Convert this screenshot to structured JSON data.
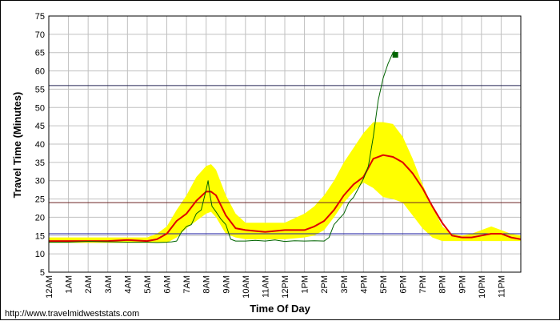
{
  "footer": {
    "url_text": "http://www.travelmidweststats.com"
  },
  "chart_data": {
    "type": "line",
    "xlabel": "Time Of Day",
    "ylabel": "Travel Time (Minutes)",
    "ylim": [
      5,
      75
    ],
    "yticks": [
      5,
      10,
      15,
      20,
      25,
      30,
      35,
      40,
      45,
      50,
      55,
      60,
      65,
      70,
      75
    ],
    "xlim": [
      0,
      24
    ],
    "xtick_labels": [
      "12AM",
      "1AM",
      "2AM",
      "3AM",
      "4AM",
      "5AM",
      "6AM",
      "7AM",
      "8AM",
      "9AM",
      "10AM",
      "11AM",
      "12PM",
      "1PM",
      "2PM",
      "3PM",
      "4PM",
      "5PM",
      "6PM",
      "7PM",
      "8PM",
      "9PM",
      "10PM",
      "11PM"
    ],
    "grid": true,
    "legend": "none",
    "reference_lines": [
      {
        "y": 15.5,
        "color": "#1a1aa0"
      },
      {
        "y": 24,
        "color": "#6a2020"
      },
      {
        "y": 56,
        "color": "#202050"
      }
    ],
    "band": {
      "color": "#ffff00",
      "x": [
        0,
        1,
        2,
        3,
        4,
        5,
        5.5,
        6,
        6.5,
        7,
        7.5,
        8,
        8.25,
        8.5,
        9,
        9.5,
        10,
        11,
        12,
        13,
        13.5,
        14,
        14.5,
        15,
        15.5,
        16,
        16.5,
        17,
        17.5,
        18,
        18.5,
        19,
        19.5,
        20,
        20.5,
        21,
        21.5,
        22,
        22.5,
        23,
        23.5,
        24
      ],
      "upper": [
        14.5,
        14.5,
        14.5,
        14.5,
        14.5,
        14.5,
        15.5,
        17.5,
        22,
        26,
        31,
        34,
        34.5,
        33,
        26,
        21,
        18.5,
        18.5,
        18.5,
        21,
        23,
        26,
        30,
        35,
        39,
        43,
        46,
        46,
        45.5,
        42,
        36,
        29,
        23,
        17.5,
        15.5,
        15,
        15.5,
        16.5,
        17.5,
        16.5,
        15.5,
        15
      ],
      "lower": [
        13,
        13,
        13,
        13,
        13,
        13,
        13,
        13,
        14.5,
        17,
        19,
        21,
        21.5,
        20,
        15.5,
        14.5,
        14,
        14,
        14,
        14.5,
        15,
        16.5,
        20,
        24,
        27,
        29.5,
        28,
        25.5,
        25,
        24,
        20.5,
        17,
        14.5,
        13.5,
        13.5,
        13.5,
        13.5,
        13.5,
        13.5,
        13.5,
        13.5,
        13.5
      ]
    },
    "series": [
      {
        "color": "#e00000",
        "x": [
          0,
          1,
          2,
          3,
          4,
          5,
          5.5,
          6,
          6.5,
          7,
          7.5,
          8,
          8.25,
          8.5,
          9,
          9.5,
          10,
          11,
          12,
          13,
          13.5,
          14,
          14.5,
          15,
          15.5,
          16,
          16.5,
          17,
          17.5,
          18,
          18.5,
          19,
          19.5,
          20,
          20.5,
          21,
          21.5,
          22,
          22.5,
          23,
          23.5,
          24
        ],
        "y": [
          13.5,
          13.5,
          13.5,
          13.5,
          13.8,
          13.5,
          14,
          15.5,
          19,
          21,
          24.5,
          27,
          27,
          26,
          20.5,
          17,
          16.5,
          16,
          16.5,
          16.5,
          17.5,
          19,
          22,
          26,
          29,
          31,
          36,
          37,
          36.5,
          35,
          32,
          28,
          23,
          18.5,
          15,
          14.5,
          14.5,
          15,
          15.5,
          15.5,
          14.5,
          14
        ]
      },
      {
        "color": "#006400",
        "x": [
          0,
          1,
          2,
          3,
          4,
          5,
          5.5,
          6,
          6.25,
          6.5,
          6.75,
          7,
          7.25,
          7.5,
          7.75,
          8,
          8.1,
          8.2,
          8.3,
          8.5,
          8.75,
          9,
          9.25,
          9.5,
          10,
          10.5,
          11,
          11.5,
          12,
          12.5,
          13,
          13.5,
          14,
          14.25,
          14.5,
          14.75,
          15,
          15.25,
          15.5,
          15.75,
          16,
          16.25,
          16.5,
          16.75,
          17,
          17.25,
          17.5,
          17.6
        ],
        "y": [
          13.2,
          13.2,
          13.4,
          13.3,
          13.2,
          13.2,
          13.1,
          13.2,
          13.3,
          13.5,
          16,
          17.5,
          18,
          21,
          22,
          27.5,
          30,
          26,
          23,
          21.5,
          19.5,
          18,
          14,
          13.5,
          13.5,
          13.7,
          13.5,
          13.8,
          13.4,
          13.6,
          13.5,
          13.6,
          13.5,
          14.5,
          18,
          19.5,
          21,
          24,
          25.5,
          28,
          30.5,
          34,
          42,
          52,
          58,
          62,
          65,
          65.5
        ]
      }
    ],
    "end_marker": {
      "x": 17.6,
      "y": 64.5,
      "color": "#006400"
    }
  }
}
